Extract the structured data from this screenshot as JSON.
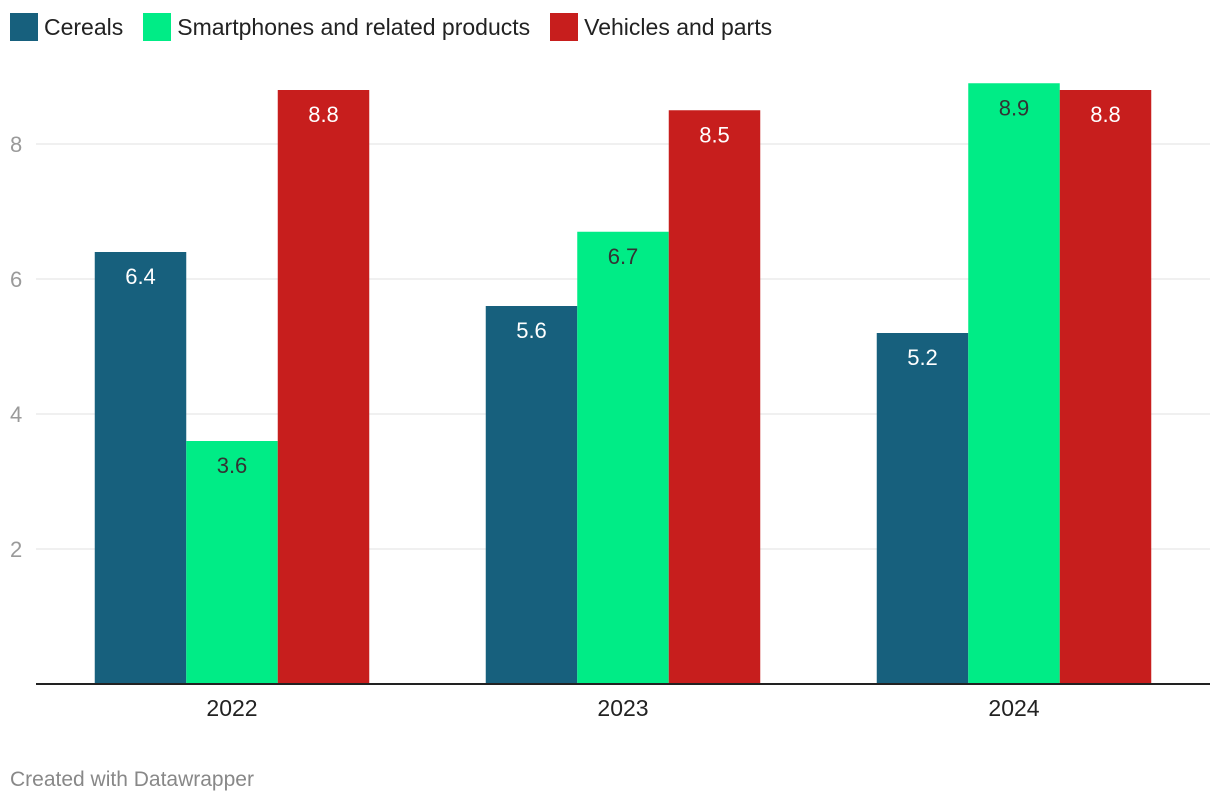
{
  "chart_data": {
    "type": "bar",
    "title": "",
    "xlabel": "",
    "ylabel": "",
    "categories": [
      "2022",
      "2023",
      "2024"
    ],
    "series": [
      {
        "name": "Cereals",
        "color": "#17607d",
        "values": [
          6.4,
          5.6,
          5.2
        ],
        "labels": [
          "6.4",
          "5.6",
          "5.2"
        ]
      },
      {
        "name": "Smartphones and related products",
        "color": "#00ec86",
        "values": [
          3.6,
          6.7,
          8.9
        ],
        "labels": [
          "3.6",
          "6.7",
          "8.9"
        ]
      },
      {
        "name": "Vehicles and parts",
        "color": "#c71e1d",
        "values": [
          8.8,
          8.5,
          8.8
        ],
        "labels": [
          "8.8",
          "8.5",
          "8.8"
        ]
      }
    ],
    "yticks": [
      "2",
      "4",
      "6",
      "8"
    ],
    "ylim": [
      0,
      9
    ],
    "grid": true,
    "legend": "top-left"
  },
  "footer": {
    "credit": "Created with Datawrapper"
  }
}
